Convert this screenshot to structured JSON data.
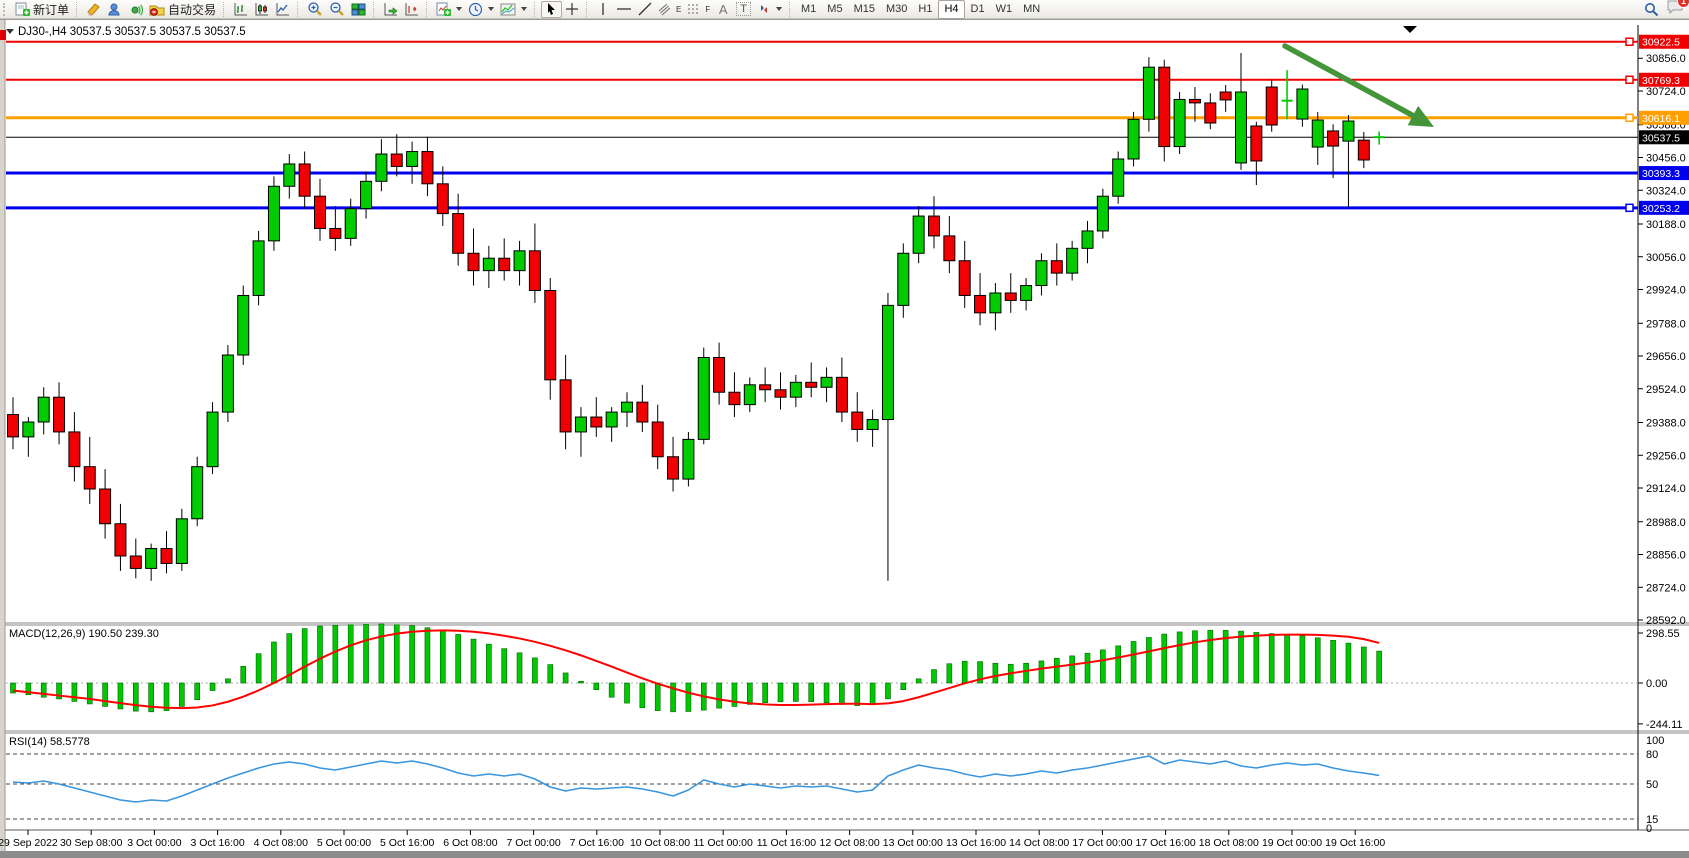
{
  "toolbar": {
    "new_order_label": "新订单",
    "autotrading_label": "自动交易",
    "timeframes": [
      "M1",
      "M5",
      "M15",
      "M30",
      "H1",
      "H4",
      "D1",
      "W1",
      "MN"
    ],
    "active_timeframe": "H4",
    "chat_badge": "1",
    "tool_letters": {
      "channel": "E",
      "fibonacci": "F",
      "text": "A",
      "label": "T"
    }
  },
  "chart_header": {
    "symbol_period": "DJ30-,H4",
    "quotes": "30537.5 30537.5 30537.5 30537.5"
  },
  "chart_data": {
    "type": "candlestick",
    "symbol": "DJ30-",
    "period": "H4",
    "current_price": 30537.5,
    "colors": {
      "bull": "#00cc00",
      "bear": "#f00000",
      "wick": "#000000",
      "macd_hist": "#00c800",
      "macd_signal": "#ff0000",
      "rsi_line": "#3a96dd",
      "arrow": "#44953a"
    },
    "ylim": [
      28584,
      30990
    ],
    "y_ticks": [
      30856.0,
      30724.0,
      30588.0,
      30456.0,
      30324.0,
      30188.0,
      30056.0,
      29924.0,
      29788.0,
      29656.0,
      29524.0,
      29388.0,
      29256.0,
      29124.0,
      28988.0,
      28856.0,
      28724.0,
      28592.0
    ],
    "levels": [
      {
        "value": 30922.5,
        "color": "#f00000",
        "width": 2,
        "handle": true
      },
      {
        "value": 30769.3,
        "color": "#f00000",
        "width": 2,
        "handle": true
      },
      {
        "value": 30616.1,
        "color": "#ffa000",
        "width": 3,
        "handle": true
      },
      {
        "value": 30537.5,
        "color": "#000000",
        "width": 1,
        "handle": false,
        "role": "current-price"
      },
      {
        "value": 30393.3,
        "color": "#0000ee",
        "width": 3,
        "handle": false
      },
      {
        "value": 30253.2,
        "color": "#0000ee",
        "width": 3,
        "handle": true
      }
    ],
    "x_labels": [
      "29 Sep 2022",
      "30 Sep 08:00",
      "3 Oct 00:00",
      "3 Oct 16:00",
      "4 Oct 08:00",
      "5 Oct 00:00",
      "5 Oct 16:00",
      "6 Oct 08:00",
      "7 Oct 00:00",
      "7 Oct 16:00",
      "10 Oct 08:00",
      "11 Oct 00:00",
      "11 Oct 16:00",
      "12 Oct 08:00",
      "13 Oct 00:00",
      "13 Oct 16:00",
      "14 Oct 08:00",
      "17 Oct 00:00",
      "17 Oct 16:00",
      "18 Oct 08:00",
      "19 Oct 00:00",
      "19 Oct 16:00"
    ],
    "candles": [
      [
        29420,
        29490,
        29280,
        29330
      ],
      [
        29330,
        29410,
        29250,
        29390
      ],
      [
        29390,
        29530,
        29340,
        29490
      ],
      [
        29490,
        29550,
        29300,
        29350
      ],
      [
        29350,
        29430,
        29150,
        29210
      ],
      [
        29210,
        29330,
        29060,
        29120
      ],
      [
        29120,
        29200,
        28920,
        28980
      ],
      [
        28980,
        29060,
        28790,
        28850
      ],
      [
        28850,
        28920,
        28760,
        28800
      ],
      [
        28800,
        28900,
        28750,
        28880
      ],
      [
        28880,
        28950,
        28780,
        28820
      ],
      [
        28820,
        29040,
        28790,
        29000
      ],
      [
        29000,
        29250,
        28970,
        29210
      ],
      [
        29210,
        29470,
        29180,
        29430
      ],
      [
        29430,
        29700,
        29390,
        29660
      ],
      [
        29660,
        29940,
        29620,
        29900
      ],
      [
        29900,
        30160,
        29860,
        30120
      ],
      [
        30120,
        30380,
        30080,
        30340
      ],
      [
        30340,
        30470,
        30290,
        30430
      ],
      [
        30430,
        30480,
        30250,
        30300
      ],
      [
        30300,
        30370,
        30120,
        30170
      ],
      [
        30170,
        30260,
        30080,
        30130
      ],
      [
        30130,
        30290,
        30100,
        30250
      ],
      [
        30250,
        30400,
        30210,
        30360
      ],
      [
        30360,
        30530,
        30320,
        30470
      ],
      [
        30470,
        30550,
        30380,
        30420
      ],
      [
        30420,
        30520,
        30350,
        30480
      ],
      [
        30480,
        30540,
        30300,
        30350
      ],
      [
        30350,
        30420,
        30180,
        30230
      ],
      [
        30230,
        30310,
        30020,
        30070
      ],
      [
        30070,
        30170,
        29940,
        30000
      ],
      [
        30000,
        30100,
        29930,
        30050
      ],
      [
        30050,
        30130,
        29960,
        30000
      ],
      [
        30000,
        30120,
        29940,
        30080
      ],
      [
        30080,
        30190,
        29870,
        29920
      ],
      [
        29920,
        29970,
        29480,
        29560
      ],
      [
        29560,
        29660,
        29280,
        29350
      ],
      [
        29350,
        29450,
        29250,
        29410
      ],
      [
        29410,
        29490,
        29330,
        29370
      ],
      [
        29370,
        29450,
        29310,
        29430
      ],
      [
        29430,
        29510,
        29370,
        29470
      ],
      [
        29470,
        29540,
        29350,
        29390
      ],
      [
        29390,
        29460,
        29200,
        29250
      ],
      [
        29250,
        29330,
        29110,
        29160
      ],
      [
        29160,
        29350,
        29130,
        29320
      ],
      [
        29320,
        29690,
        29300,
        29650
      ],
      [
        29650,
        29710,
        29460,
        29510
      ],
      [
        29510,
        29590,
        29410,
        29460
      ],
      [
        29460,
        29570,
        29430,
        29540
      ],
      [
        29540,
        29610,
        29470,
        29520
      ],
      [
        29520,
        29590,
        29440,
        29490
      ],
      [
        29490,
        29580,
        29450,
        29550
      ],
      [
        29550,
        29630,
        29490,
        29530
      ],
      [
        29530,
        29610,
        29470,
        29570
      ],
      [
        29570,
        29650,
        29390,
        29430
      ],
      [
        29430,
        29510,
        29310,
        29360
      ],
      [
        29360,
        29440,
        29290,
        29400
      ],
      [
        29400,
        29910,
        28750,
        29860
      ],
      [
        29860,
        30110,
        29810,
        30070
      ],
      [
        30070,
        30260,
        30030,
        30220
      ],
      [
        30220,
        30300,
        30090,
        30140
      ],
      [
        30140,
        30220,
        29990,
        30040
      ],
      [
        30040,
        30120,
        29850,
        29900
      ],
      [
        29900,
        29990,
        29780,
        29830
      ],
      [
        29830,
        29950,
        29760,
        29910
      ],
      [
        29910,
        29990,
        29830,
        29880
      ],
      [
        29880,
        29970,
        29840,
        29940
      ],
      [
        29940,
        30070,
        29900,
        30040
      ],
      [
        30040,
        30110,
        29940,
        29990
      ],
      [
        29990,
        30120,
        29960,
        30090
      ],
      [
        30090,
        30200,
        30030,
        30160
      ],
      [
        30160,
        30330,
        30130,
        30300
      ],
      [
        30300,
        30480,
        30270,
        30450
      ],
      [
        30450,
        30640,
        30420,
        30610
      ],
      [
        30610,
        30860,
        30560,
        30820
      ],
      [
        30820,
        30850,
        30440,
        30500
      ],
      [
        30500,
        30720,
        30470,
        30690
      ],
      [
        30690,
        30740,
        30600,
        30676
      ],
      [
        30676,
        30715,
        30570,
        30595
      ],
      [
        30720,
        30748,
        30640,
        30688
      ],
      [
        30434,
        30877,
        30406,
        30720
      ],
      [
        30583,
        30600,
        30345,
        30442
      ],
      [
        30740,
        30770,
        30560,
        30587
      ],
      [
        30682,
        30808,
        30610,
        30685
      ],
      [
        30611,
        30750,
        30580,
        30732
      ],
      [
        30498,
        30639,
        30426,
        30607
      ],
      [
        30563,
        30590,
        30373,
        30502
      ],
      [
        30522,
        30627,
        30256,
        30603
      ],
      [
        30526,
        30559,
        30413,
        30446
      ],
      [
        30537,
        30561,
        30508,
        30538
      ]
    ],
    "annotations": [
      {
        "type": "trend-arrow",
        "from_xy": [
          1285,
          46
        ],
        "to_xy": [
          1434,
          127
        ],
        "color": "#44953a"
      }
    ],
    "indicators": [
      {
        "name": "MACD",
        "label": "MACD(12,26,9) 190.50 239.30",
        "params": "12,26,9",
        "main_value": 190.5,
        "signal_value": 239.3,
        "y_ticks": [
          298.55,
          0.0,
          -244.11
        ],
        "ylim": [
          -280,
          340
        ],
        "histogram": [
          -60,
          -70,
          -85,
          -95,
          -110,
          -125,
          -140,
          -155,
          -168,
          -172,
          -165,
          -140,
          -100,
          -45,
          25,
          100,
          175,
          245,
          295,
          325,
          340,
          345,
          348,
          350,
          352,
          348,
          342,
          330,
          312,
          290,
          262,
          232,
          205,
          180,
          150,
          110,
          60,
          10,
          -40,
          -85,
          -120,
          -148,
          -165,
          -172,
          -170,
          -162,
          -150,
          -140,
          -128,
          -118,
          -112,
          -110,
          -112,
          -118,
          -128,
          -135,
          -130,
          -95,
          -40,
          25,
          80,
          115,
          130,
          128,
          118,
          112,
          118,
          132,
          148,
          162,
          178,
          198,
          222,
          248,
          272,
          292,
          305,
          312,
          315,
          314,
          310,
          302,
          295,
          290,
          282,
          270,
          255,
          238,
          215,
          190.5
        ],
        "signal": [
          -45,
          -55,
          -65,
          -75,
          -85,
          -95,
          -108,
          -120,
          -132,
          -142,
          -148,
          -150,
          -146,
          -134,
          -112,
          -82,
          -44,
          0,
          48,
          98,
          145,
          188,
          225,
          255,
          278,
          295,
          306,
          312,
          314,
          312,
          306,
          296,
          282,
          266,
          246,
          222,
          195,
          165,
          132,
          98,
          62,
          28,
          -4,
          -32,
          -58,
          -80,
          -98,
          -112,
          -122,
          -128,
          -131,
          -131,
          -129,
          -126,
          -124,
          -124,
          -126,
          -122,
          -108,
          -85,
          -58,
          -30,
          -2,
          22,
          42,
          58,
          72,
          86,
          98,
          110,
          122,
          136,
          152,
          170,
          189,
          208,
          226,
          243,
          257,
          268,
          277,
          283,
          287,
          289,
          289,
          287,
          283,
          276,
          262,
          239.3
        ]
      },
      {
        "name": "RSI",
        "label": "RSI(14) 58.5778",
        "params": "14",
        "value": 58.5778,
        "levels": [
          80,
          50,
          15
        ],
        "y_ticks": [
          100,
          80,
          50,
          15,
          0
        ],
        "ylim": [
          0,
          100
        ],
        "values": [
          52,
          51,
          53,
          50,
          46,
          42,
          38,
          34,
          32,
          34,
          33,
          38,
          44,
          50,
          56,
          61,
          66,
          70,
          72,
          70,
          66,
          64,
          67,
          70,
          73,
          71,
          73,
          70,
          66,
          61,
          58,
          60,
          58,
          60,
          55,
          47,
          43,
          46,
          45,
          46,
          47,
          45,
          42,
          38,
          44,
          54,
          50,
          47,
          50,
          48,
          46,
          48,
          47,
          48,
          45,
          42,
          44,
          58,
          64,
          69,
          66,
          64,
          60,
          57,
          60,
          58,
          60,
          63,
          61,
          64,
          66,
          69,
          72,
          75,
          78,
          70,
          74,
          72,
          70,
          73,
          68,
          66,
          69,
          71,
          69,
          70,
          66,
          63,
          61,
          58.58
        ]
      }
    ]
  }
}
